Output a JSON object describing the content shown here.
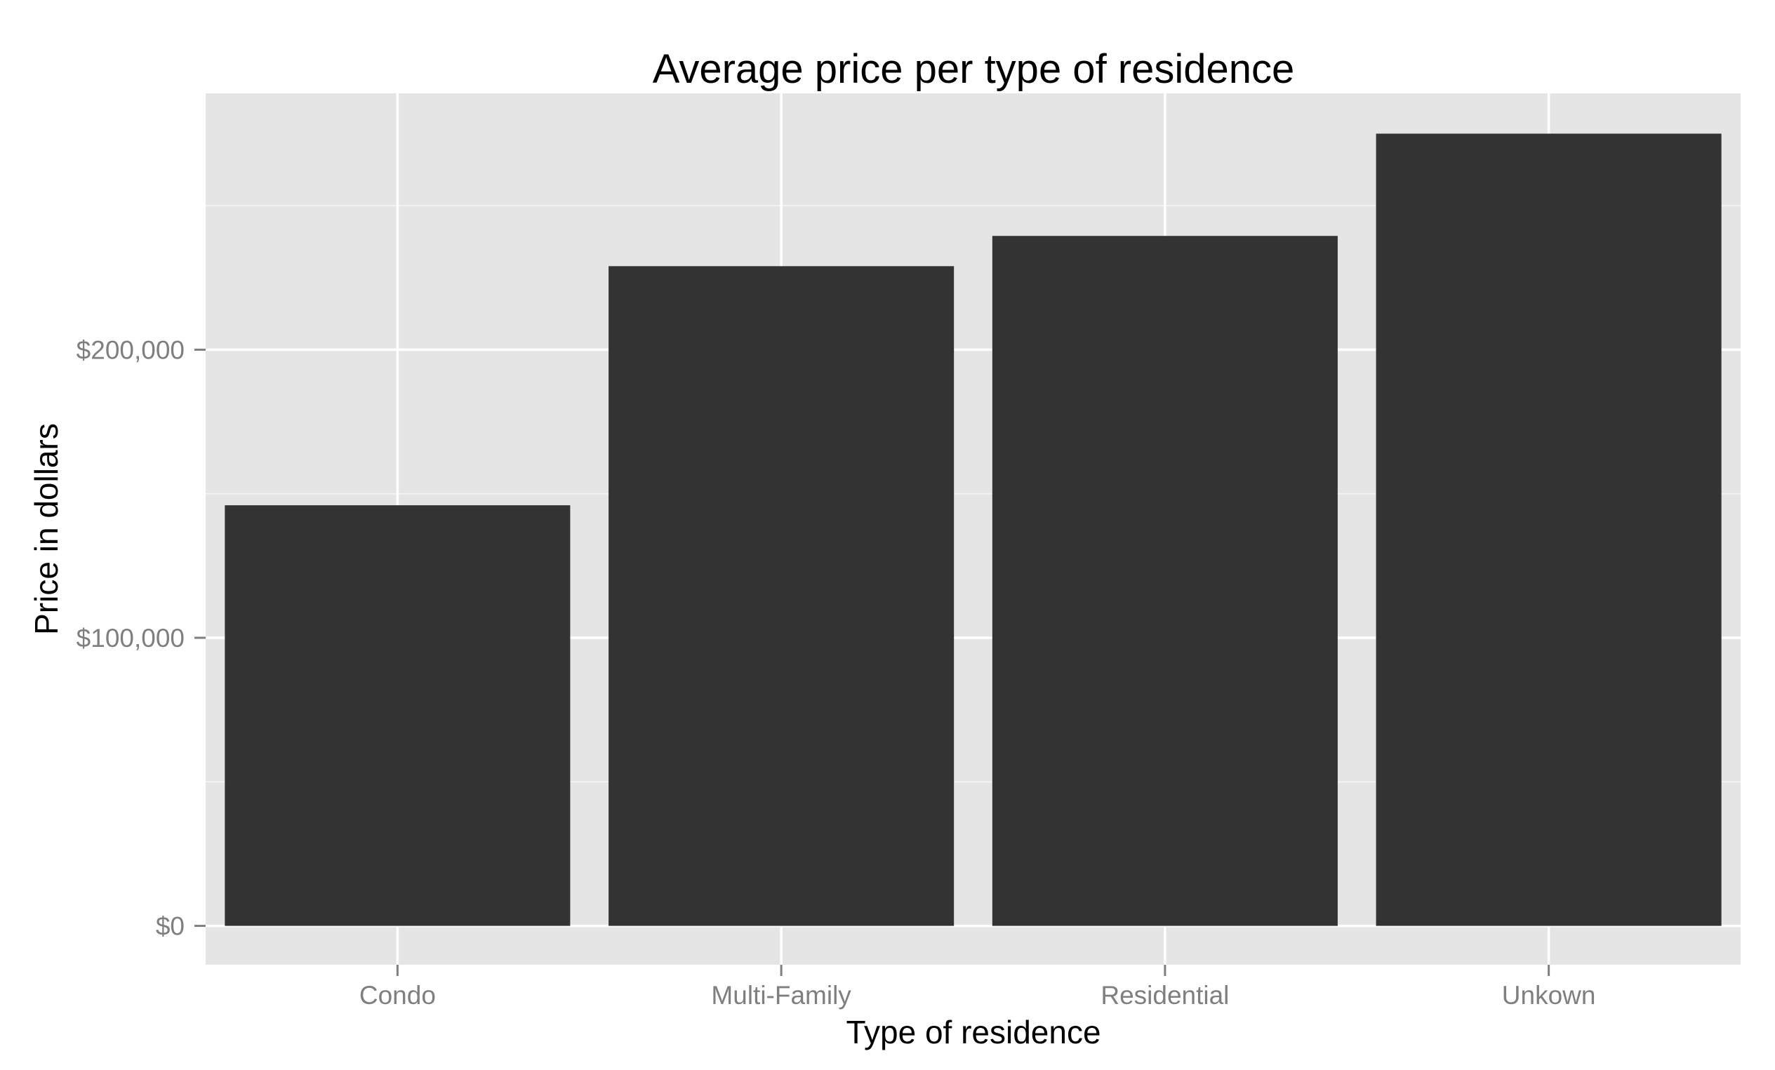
{
  "chart_data": {
    "type": "bar",
    "title": "Average price per type of residence",
    "xlabel": "Type of residence",
    "ylabel": "Price in dollars",
    "categories": [
      "Condo",
      "Multi-Family",
      "Residential",
      "Unkown"
    ],
    "values": [
      146000,
      229000,
      239500,
      275000
    ],
    "ylim": [
      -13500,
      289000
    ],
    "yticks": [
      0,
      100000,
      200000
    ],
    "ytick_labels": [
      "$0",
      "$100,000",
      "$200,000"
    ],
    "grid": true,
    "legend": "none",
    "colors": {
      "bar": "#333333",
      "panel": "#e5e5e5",
      "grid_major": "#ffffff",
      "grid_minor": "#f2f2f2"
    }
  }
}
